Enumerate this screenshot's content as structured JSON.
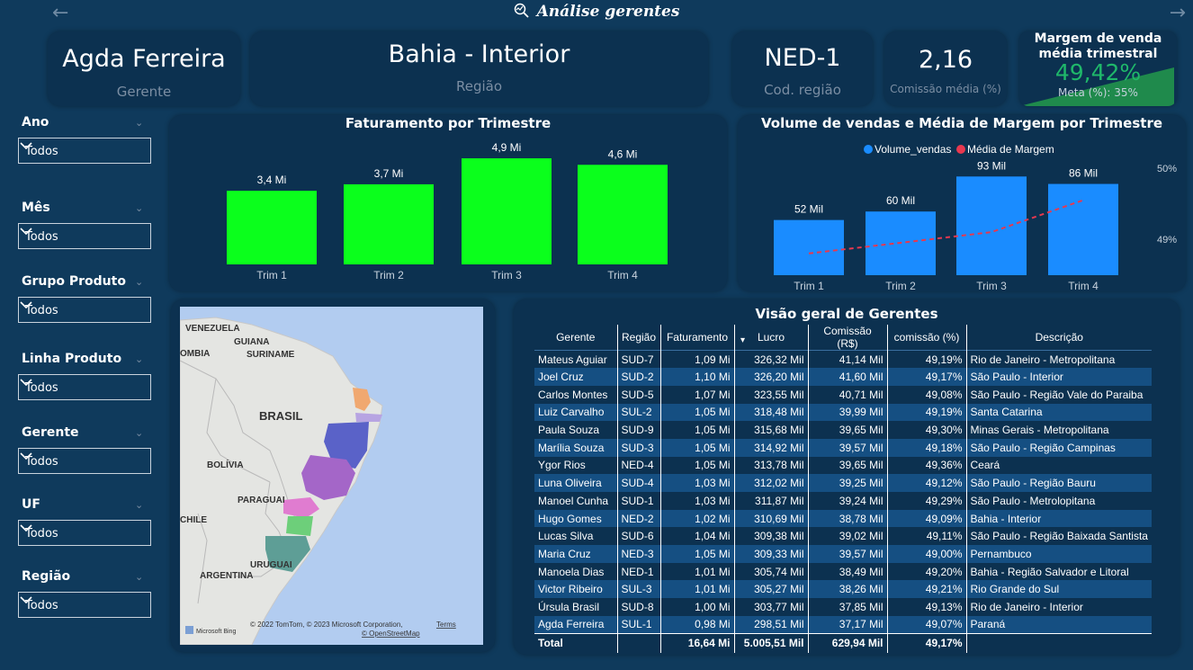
{
  "header": {
    "title": "Análise gerentes",
    "back_icon": "arrow-left-icon",
    "forward_icon": "arrow-right-icon"
  },
  "kpis": {
    "manager": {
      "value": "Agda Ferreira",
      "label": "Gerente"
    },
    "region": {
      "value": "Bahia - Interior",
      "label": "Região"
    },
    "region_code": {
      "value": "NED-1",
      "label": "Cod. região"
    },
    "commission": {
      "value": "2,16",
      "label": "Comissão média (%)"
    },
    "margin": {
      "title_line1": "Margem de venda",
      "title_line2": "média trimestral",
      "value": "49,42%",
      "goal": "Meta (%): 35%",
      "value_color": "#1fb86a",
      "progress_fraction": 1.0
    }
  },
  "filters": [
    {
      "label": "Ano",
      "value": "Todos"
    },
    {
      "label": "Mês",
      "value": "Todos"
    },
    {
      "label": "Grupo Produto",
      "value": "Todos"
    },
    {
      "label": "Linha Produto",
      "value": "Todos"
    },
    {
      "label": "Gerente",
      "value": "Todos"
    },
    {
      "label": "UF",
      "value": "Todos"
    },
    {
      "label": "Região",
      "value": "Todos"
    }
  ],
  "chart_data": [
    {
      "type": "bar",
      "title": "Faturamento por Trimestre",
      "categories": [
        "Trim 1",
        "Trim 2",
        "Trim 3",
        "Trim 4"
      ],
      "values": [
        3.4,
        3.7,
        4.9,
        4.6
      ],
      "data_labels": [
        "3,4 Mi",
        "3,7 Mi",
        "4,9 Mi",
        "4,6 Mi"
      ],
      "color": "#0bff1c"
    },
    {
      "type": "bar",
      "title": "Volume de vendas e Média de Margem por Trimestre",
      "categories": [
        "Trim 1",
        "Trim 2",
        "Trim 3",
        "Trim 4"
      ],
      "series": [
        {
          "name": "Volume_vendas",
          "values": [
            52,
            60,
            93,
            86
          ],
          "data_labels": [
            "52 Mil",
            "60 Mil",
            "93 Mil",
            "86 Mil"
          ],
          "color": "#1a8cff"
        },
        {
          "name": "Média de Margem",
          "type": "line",
          "values": [
            48.8,
            48.95,
            49.1,
            49.55
          ],
          "color": "#e8384f"
        }
      ],
      "y2_ticks": [
        "50%",
        "49%"
      ],
      "legend": "top-center"
    }
  ],
  "map": {
    "labels": [
      "VENEZUELA",
      "GUIANA",
      "SURINAME",
      "OMBIA",
      "BRASIL",
      "BOLÍVIA",
      "PARAGUAI",
      "CHILE",
      "URUGUAI",
      "ARGENTINA"
    ],
    "attribution": "© 2022 TomTom, © 2023 Microsoft Corporation,",
    "terms": "Terms",
    "osm": "© OpenStreetMap",
    "brand": "Microsoft Bing"
  },
  "table": {
    "title": "Visão geral de Gerentes",
    "columns": [
      "Gerente",
      "Região",
      "Faturamento",
      "Lucro",
      "Comissão (R$)",
      "comissão (%)",
      "Descrição"
    ],
    "rows": [
      [
        "Mateus Aguiar",
        "SUD-7",
        "1,09 Mi",
        "326,32 Mil",
        "41,14 Mil",
        "49,19%",
        "Rio de Janeiro - Metropolitana"
      ],
      [
        "Joel Cruz",
        "SUD-2",
        "1,10 Mi",
        "326,20 Mil",
        "41,60 Mil",
        "49,17%",
        "São Paulo - Interior"
      ],
      [
        "Carlos Montes",
        "SUD-5",
        "1,07 Mi",
        "323,55 Mil",
        "40,71 Mil",
        "49,08%",
        "São Paulo - Região Vale do Paraiba"
      ],
      [
        "Luiz Carvalho",
        "SUL-2",
        "1,05 Mi",
        "318,48 Mil",
        "39,99 Mil",
        "49,19%",
        "Santa Catarina"
      ],
      [
        "Paula Souza",
        "SUD-9",
        "1,05 Mi",
        "315,68 Mil",
        "39,65 Mil",
        "49,30%",
        "Minas Gerais - Metropolitana"
      ],
      [
        "Marília Souza",
        "SUD-3",
        "1,05 Mi",
        "314,92 Mil",
        "39,57 Mil",
        "49,18%",
        "São Paulo - Região Campinas"
      ],
      [
        "Ygor Rios",
        "NED-4",
        "1,05 Mi",
        "313,78 Mil",
        "39,65 Mil",
        "49,36%",
        "Ceará"
      ],
      [
        "Luna Oliveira",
        "SUD-4",
        "1,03 Mi",
        "312,02 Mil",
        "39,25 Mil",
        "49,12%",
        "São Paulo - Região Bauru"
      ],
      [
        "Manoel Cunha",
        "SUD-1",
        "1,03 Mi",
        "311,87 Mil",
        "39,24 Mil",
        "49,29%",
        "São Paulo - Metrolopitana"
      ],
      [
        "Hugo Gomes",
        "NED-2",
        "1,02 Mi",
        "310,69 Mil",
        "38,78 Mil",
        "49,09%",
        "Bahia - Interior"
      ],
      [
        "Lucas Silva",
        "SUD-6",
        "1,04 Mi",
        "309,38 Mil",
        "39,02 Mil",
        "49,11%",
        "São Paulo - Região Baixada Santista"
      ],
      [
        "Maria Cruz",
        "NED-3",
        "1,05 Mi",
        "309,33 Mil",
        "39,57 Mil",
        "49,00%",
        "Pernambuco"
      ],
      [
        "Manoela Dias",
        "NED-1",
        "1,01 Mi",
        "305,74 Mil",
        "38,49 Mil",
        "49,20%",
        "Bahia - Região Salvador e Litoral"
      ],
      [
        "Victor Ribeiro",
        "SUL-3",
        "1,01 Mi",
        "305,27 Mil",
        "38,26 Mil",
        "49,21%",
        "Rio Grande do Sul"
      ],
      [
        "Úrsula Brasil",
        "SUD-8",
        "1,00 Mi",
        "303,77 Mil",
        "37,85 Mil",
        "49,13%",
        "Rio de Janeiro - Interior"
      ],
      [
        "Agda Ferreira",
        "SUL-1",
        "0,98 Mi",
        "298,51 Mil",
        "37,17 Mil",
        "49,07%",
        "Paraná"
      ]
    ],
    "total": [
      "Total",
      "",
      "16,64 Mi",
      "5.005,51 Mil",
      "629,94 Mil",
      "49,17%",
      ""
    ]
  }
}
